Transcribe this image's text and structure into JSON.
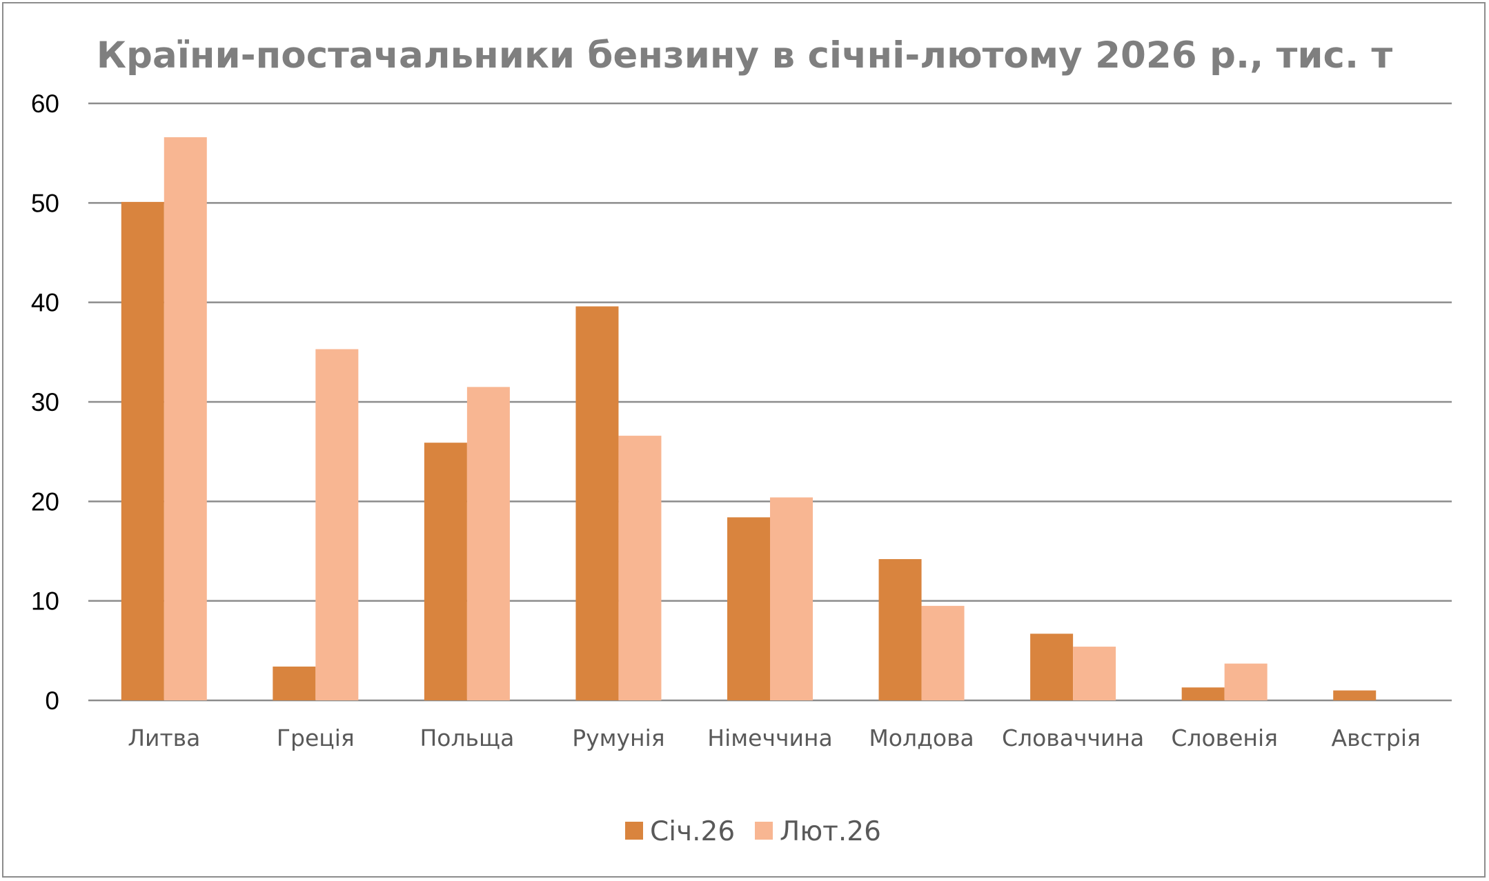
{
  "chart_data": {
    "type": "bar",
    "title": "Країни-постачальники бензину в січні-лютому 2026 р., тис. т",
    "xlabel": "",
    "ylabel": "",
    "ylim": [
      0,
      60
    ],
    "yticks": [
      0,
      10,
      20,
      30,
      40,
      50,
      60
    ],
    "grid": true,
    "legend_position": "bottom",
    "categories": [
      "Литва",
      "Греція",
      "Польща",
      "Румунія",
      "Німеччина",
      "Молдова",
      "Словаччина",
      "Словенія",
      "Австрія"
    ],
    "series": [
      {
        "name": "Січ.26",
        "color": "#d9843e",
        "values": [
          50.1,
          3.4,
          25.9,
          39.6,
          18.4,
          14.2,
          6.7,
          1.3,
          1.0
        ]
      },
      {
        "name": "Лют.26",
        "color": "#f8b692",
        "values": [
          56.6,
          35.3,
          31.5,
          26.6,
          20.4,
          9.5,
          5.4,
          3.7,
          0
        ]
      }
    ]
  }
}
